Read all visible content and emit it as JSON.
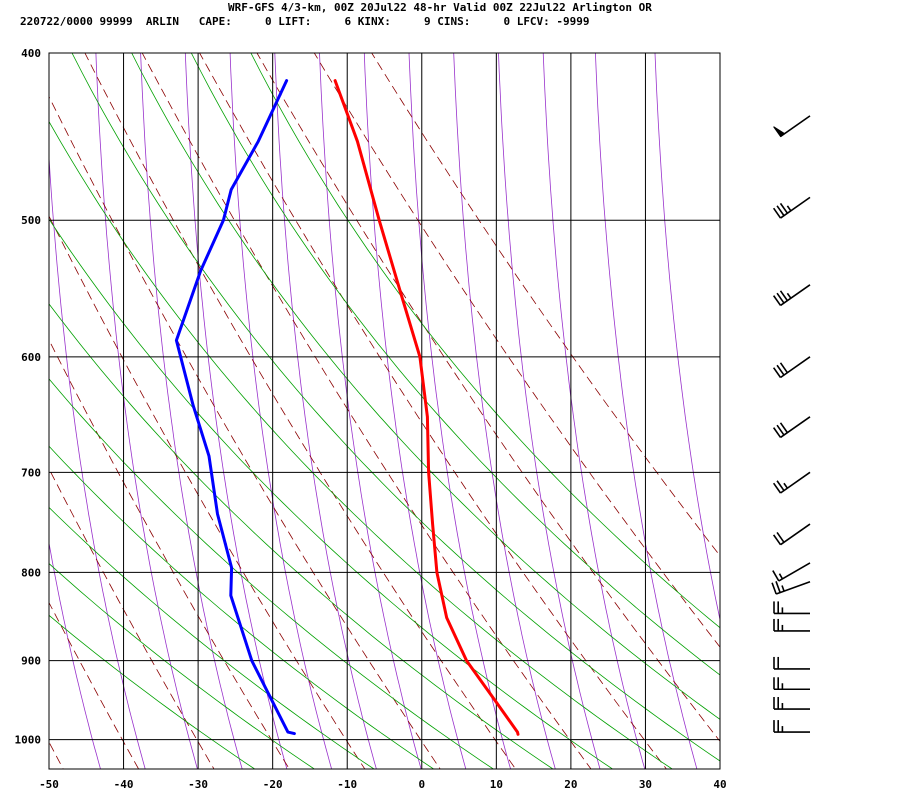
{
  "header": {
    "line1": "WRF-GFS 4/3-km, 00Z 20Jul22 48-hr Valid 00Z 22Jul22 Arlington OR",
    "line2": "220722/0000 99999  ARLIN   CAPE:     0 LIFT:     6 KINX:     9 CINS:     0 LFCV: -9999"
  },
  "chart_data": {
    "type": "line",
    "diagram": "skew-T log-P sounding",
    "x_ticks": [
      "-50",
      "-40",
      "-30",
      "-20",
      "-10",
      "0",
      "10",
      "20",
      "30",
      "40"
    ],
    "y_ticks": [
      "400",
      "500",
      "600",
      "700",
      "800",
      "900",
      "1000"
    ],
    "xlim": [
      -50,
      40
    ],
    "ylim": [
      1040,
      400
    ],
    "y_scale": "log",
    "grid": true,
    "colors": {
      "temperature": "#ff0000",
      "dewpoint": "#0000ff",
      "dry_adiabat": "#8b0000",
      "moist_adiabat": "#00a000",
      "mixing_ratio": "#9932cc"
    },
    "series": [
      {
        "key": "temperature",
        "points": [
          [
            415,
            -21.3
          ],
          [
            450,
            -17.4
          ],
          [
            500,
            -13.3
          ],
          [
            550,
            -9.4
          ],
          [
            600,
            -5.8
          ],
          [
            650,
            -3.9
          ],
          [
            700,
            -2.9
          ],
          [
            750,
            -1.6
          ],
          [
            800,
            -0.3
          ],
          [
            850,
            1.7
          ],
          [
            900,
            5.0
          ],
          [
            950,
            9.5
          ],
          [
            990,
            12.9
          ],
          [
            993,
            13.0
          ]
        ]
      },
      {
        "key": "dewpoint",
        "points": [
          [
            415,
            -27.8
          ],
          [
            450,
            -30.7
          ],
          [
            480,
            -33.6
          ],
          [
            500,
            -34.2
          ],
          [
            535,
            -36.5
          ],
          [
            587,
            -38.7
          ],
          [
            640,
            -35.5
          ],
          [
            685,
            -32.6
          ],
          [
            740,
            -30.6
          ],
          [
            795,
            -27.9
          ],
          [
            825,
            -27.6
          ],
          [
            900,
            -23.8
          ],
          [
            990,
            -17.9
          ],
          [
            992,
            -17.0
          ]
        ]
      }
    ],
    "wind_barbs": [
      {
        "p": 435,
        "dir": 235,
        "spd": 50
      },
      {
        "p": 485,
        "dir": 235,
        "spd": 35
      },
      {
        "p": 545,
        "dir": 235,
        "spd": 35
      },
      {
        "p": 600,
        "dir": 235,
        "spd": 30
      },
      {
        "p": 650,
        "dir": 235,
        "spd": 30
      },
      {
        "p": 700,
        "dir": 235,
        "spd": 25
      },
      {
        "p": 750,
        "dir": 235,
        "spd": 20
      },
      {
        "p": 790,
        "dir": 240,
        "spd": 15
      },
      {
        "p": 810,
        "dir": 250,
        "spd": 25
      },
      {
        "p": 845,
        "dir": 270,
        "spd": 25
      },
      {
        "p": 865,
        "dir": 270,
        "spd": 25
      },
      {
        "p": 910,
        "dir": 270,
        "spd": 20
      },
      {
        "p": 935,
        "dir": 270,
        "spd": 25
      },
      {
        "p": 960,
        "dir": 270,
        "spd": 25
      },
      {
        "p": 990,
        "dir": 270,
        "spd": 25
      }
    ]
  }
}
